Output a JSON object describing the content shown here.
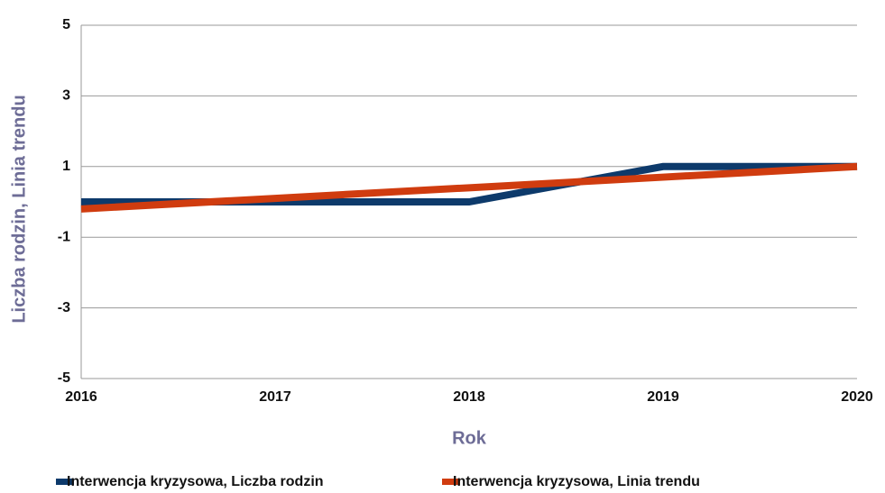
{
  "chart_data": {
    "type": "line",
    "x": [
      2016,
      2017,
      2018,
      2019,
      2020
    ],
    "series": [
      {
        "name": "Interwencja kryzysowa, Liczba rodzin",
        "color": "#0d3a6b",
        "values": [
          0,
          0,
          0,
          1,
          1
        ]
      },
      {
        "name": "Interwencja kryzysowa, Linia trendu",
        "color": "#d03c0f",
        "values": [
          -0.2,
          0.1,
          0.4,
          0.7,
          1.0
        ]
      }
    ],
    "xlim": [
      2016,
      2020
    ],
    "xticks": [
      2016,
      2017,
      2018,
      2019,
      2020
    ],
    "ylim": [
      -5,
      5
    ],
    "yticks": [
      -5,
      -3,
      -1,
      1,
      3,
      5
    ],
    "xlabel": "Rok",
    "ylabel": "Liczba rodzin, Linia trendu",
    "grid": true,
    "legend": "bottom"
  }
}
